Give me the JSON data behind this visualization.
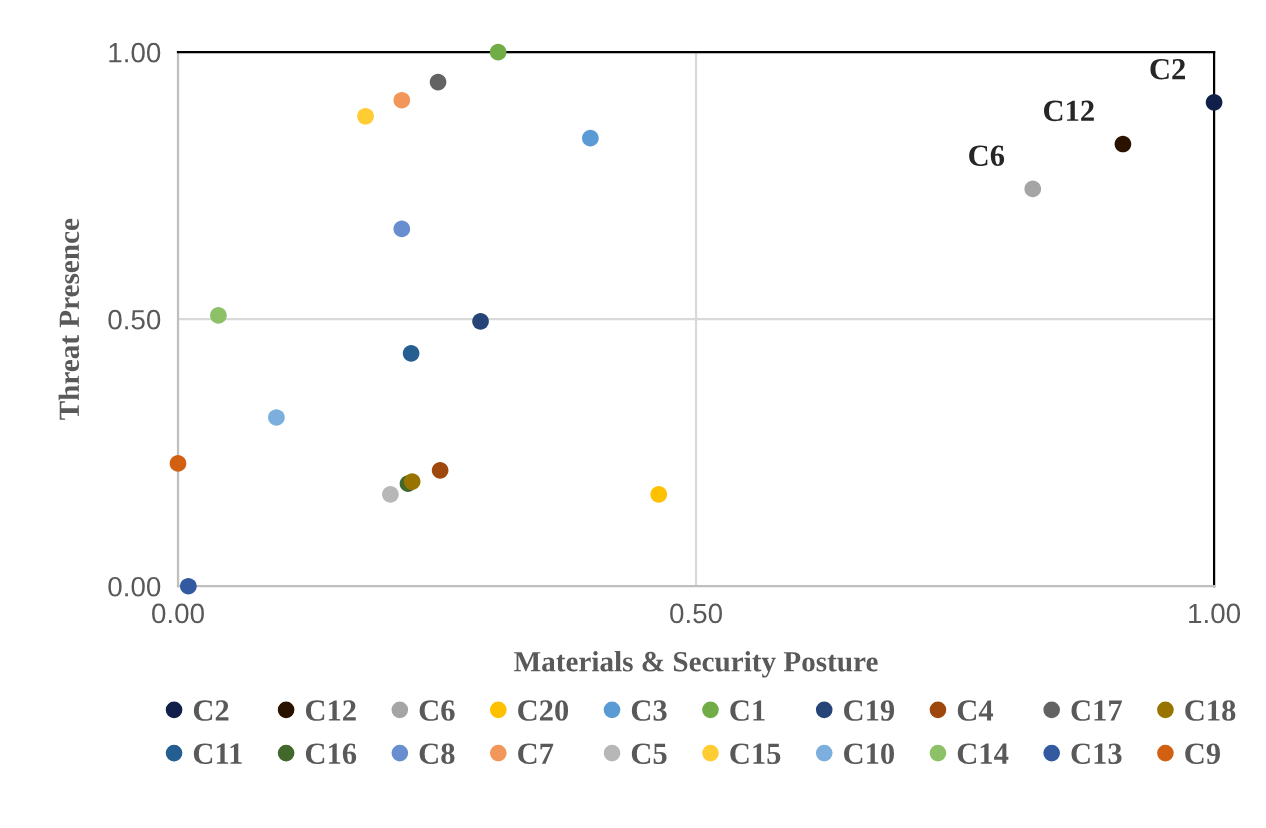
{
  "chart_data": {
    "type": "scatter",
    "xlabel": "Materials & Security Posture",
    "ylabel": "Threat Presence",
    "xlim": [
      0,
      1
    ],
    "ylim": [
      0,
      1
    ],
    "xticks": [
      {
        "value": 0,
        "label": "0.00"
      },
      {
        "value": 0.5,
        "label": "0.50"
      },
      {
        "value": 1,
        "label": "1.00"
      }
    ],
    "yticks": [
      {
        "value": 0,
        "label": "0.00"
      },
      {
        "value": 0.5,
        "label": "0.50"
      },
      {
        "value": 1,
        "label": "1.00"
      }
    ],
    "grid": true,
    "legend": "bottom",
    "marker": "circle",
    "series": [
      {
        "name": "C2",
        "color": "#10204a",
        "x": [
          1.0
        ],
        "values": [
          0.906
        ]
      },
      {
        "name": "C12",
        "color": "#2a1200",
        "x": [
          0.912
        ],
        "values": [
          0.828
        ]
      },
      {
        "name": "C6",
        "color": "#a5a5a5",
        "x": [
          0.825
        ],
        "values": [
          0.744
        ]
      },
      {
        "name": "C20",
        "color": "#ffc000",
        "x": [
          0.464
        ],
        "values": [
          0.172
        ]
      },
      {
        "name": "C3",
        "color": "#5b9bd5",
        "x": [
          0.398
        ],
        "values": [
          0.839
        ]
      },
      {
        "name": "C1",
        "color": "#70ad47",
        "x": [
          0.309
        ],
        "values": [
          1.0
        ]
      },
      {
        "name": "C19",
        "color": "#264478",
        "x": [
          0.292
        ],
        "values": [
          0.496
        ]
      },
      {
        "name": "C4",
        "color": "#9e480e",
        "x": [
          0.253
        ],
        "values": [
          0.217
        ]
      },
      {
        "name": "C17",
        "color": "#636363",
        "x": [
          0.251
        ],
        "values": [
          0.944
        ]
      },
      {
        "name": "C18",
        "color": "#997300",
        "x": [
          0.226
        ],
        "values": [
          0.196
        ]
      },
      {
        "name": "C11",
        "color": "#255e91",
        "x": [
          0.225
        ],
        "values": [
          0.436
        ]
      },
      {
        "name": "C16",
        "color": "#43682b",
        "x": [
          0.222
        ],
        "values": [
          0.192
        ]
      },
      {
        "name": "C8",
        "color": "#698ed0",
        "x": [
          0.216
        ],
        "values": [
          0.669
        ]
      },
      {
        "name": "C7",
        "color": "#f1975a",
        "x": [
          0.216
        ],
        "values": [
          0.91
        ]
      },
      {
        "name": "C5",
        "color": "#b7b7b7",
        "x": [
          0.205
        ],
        "values": [
          0.172
        ]
      },
      {
        "name": "C15",
        "color": "#ffcd33",
        "x": [
          0.181
        ],
        "values": [
          0.88
        ]
      },
      {
        "name": "C10",
        "color": "#7cafdd",
        "x": [
          0.095
        ],
        "values": [
          0.316
        ]
      },
      {
        "name": "C14",
        "color": "#8cc168",
        "x": [
          0.039
        ],
        "values": [
          0.507
        ]
      },
      {
        "name": "C13",
        "color": "#335aa1",
        "x": [
          0.01
        ],
        "values": [
          0.0
        ]
      },
      {
        "name": "C9",
        "color": "#d26012",
        "x": [
          0.0
        ],
        "values": [
          0.23
        ]
      }
    ],
    "annotations": [
      {
        "text": "C2",
        "x": 1.0,
        "y": 0.906
      },
      {
        "text": "C12",
        "x": 0.912,
        "y": 0.828
      },
      {
        "text": "C6",
        "x": 0.825,
        "y": 0.744
      }
    ]
  }
}
